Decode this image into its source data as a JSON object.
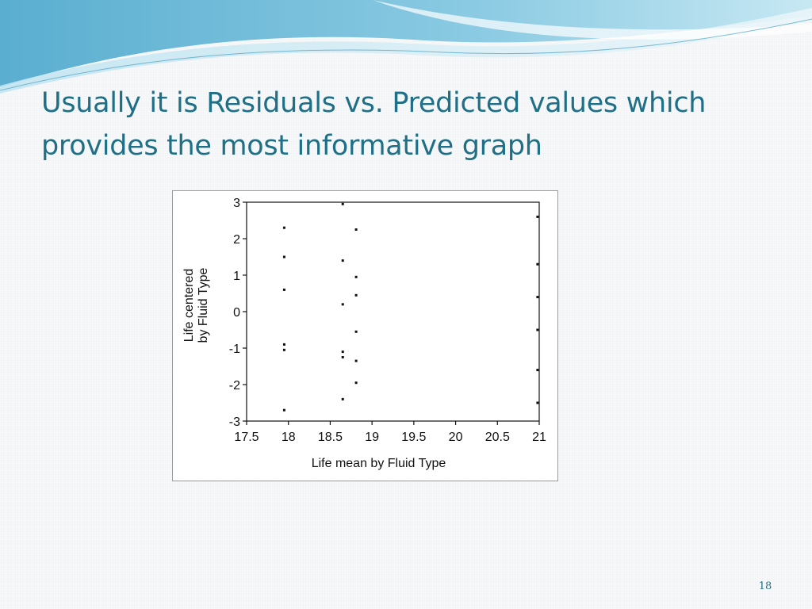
{
  "slide": {
    "title_line1": "Usually it is Residuals vs. Predicted values which",
    "title_line2": "provides the most informative graph",
    "page_number": "18"
  },
  "theme": {
    "title_color": "#1f6f86",
    "swoosh_colors": [
      "#6fb9d6",
      "#a9dcec",
      "#d9f0f7"
    ]
  },
  "chart_data": {
    "type": "scatter",
    "xlabel": "Life mean by Fluid Type",
    "ylabel_line1": "Life centered",
    "ylabel_line2": "by Fluid Type",
    "xlim": [
      17.5,
      21
    ],
    "ylim": [
      -3,
      3
    ],
    "x_ticks": [
      "17.5",
      "18",
      "18.5",
      "19",
      "19.5",
      "20",
      "20.5",
      "21"
    ],
    "y_ticks": [
      "3",
      "2",
      "1",
      "0",
      "-1",
      "-2",
      "-3"
    ],
    "grid": false,
    "points": [
      {
        "x": 17.95,
        "y": 2.3
      },
      {
        "x": 17.95,
        "y": 1.5
      },
      {
        "x": 17.95,
        "y": 0.6
      },
      {
        "x": 17.95,
        "y": -0.9
      },
      {
        "x": 17.95,
        "y": -1.05
      },
      {
        "x": 17.95,
        "y": -2.7
      },
      {
        "x": 18.65,
        "y": 2.95
      },
      {
        "x": 18.65,
        "y": 1.4
      },
      {
        "x": 18.65,
        "y": 0.2
      },
      {
        "x": 18.65,
        "y": -1.1
      },
      {
        "x": 18.65,
        "y": -1.25
      },
      {
        "x": 18.65,
        "y": -2.4
      },
      {
        "x": 18.81,
        "y": 2.25
      },
      {
        "x": 18.81,
        "y": 0.95
      },
      {
        "x": 18.81,
        "y": 0.45
      },
      {
        "x": 18.81,
        "y": -0.55
      },
      {
        "x": 18.81,
        "y": -1.35
      },
      {
        "x": 18.81,
        "y": -1.95
      },
      {
        "x": 20.98,
        "y": 2.6
      },
      {
        "x": 20.98,
        "y": 1.3
      },
      {
        "x": 20.98,
        "y": 0.4
      },
      {
        "x": 20.98,
        "y": -0.5
      },
      {
        "x": 20.98,
        "y": -1.6
      },
      {
        "x": 20.98,
        "y": -2.5
      }
    ]
  }
}
